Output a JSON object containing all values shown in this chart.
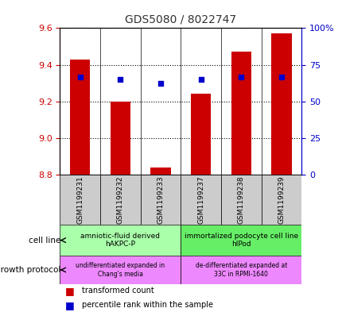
{
  "title": "GDS5080 / 8022747",
  "samples": [
    "GSM1199231",
    "GSM1199232",
    "GSM1199233",
    "GSM1199237",
    "GSM1199238",
    "GSM1199239"
  ],
  "transformed_count": [
    9.43,
    9.2,
    8.84,
    9.24,
    9.47,
    9.57
  ],
  "percentile_rank": [
    66.5,
    65.0,
    62.5,
    65.0,
    66.5,
    66.5
  ],
  "y_min": 8.8,
  "y_max": 9.6,
  "y_ticks": [
    8.8,
    9.0,
    9.2,
    9.4,
    9.6
  ],
  "y2_ticks": [
    0,
    25,
    50,
    75,
    100
  ],
  "y2_tick_labels": [
    "0",
    "25",
    "50",
    "75",
    "100%"
  ],
  "bar_color": "#cc0000",
  "dot_color": "#0000cc",
  "bar_bottom": 8.8,
  "cell_line_groups": [
    {
      "label": "amniotic-fluid derived\nhAKPC-P",
      "start": 0,
      "end": 3,
      "color": "#aaffaa"
    },
    {
      "label": "immortalized podocyte cell line\nhIPod",
      "start": 3,
      "end": 6,
      "color": "#66ee66"
    }
  ],
  "growth_protocol_groups": [
    {
      "label": "undifferentiated expanded in\nChang's media",
      "start": 0,
      "end": 3,
      "color": "#ee88ff"
    },
    {
      "label": "de-differentiated expanded at\n33C in RPMI-1640",
      "start": 3,
      "end": 6,
      "color": "#ee88ff"
    }
  ],
  "label_cell_line": "cell line",
  "label_growth_protocol": "growth protocol",
  "legend_red": "transformed count",
  "legend_blue": "percentile rank within the sample",
  "title_color": "#333333",
  "left_axis_color": "#cc0000",
  "right_axis_color": "#0000cc",
  "sample_box_color": "#cccccc"
}
